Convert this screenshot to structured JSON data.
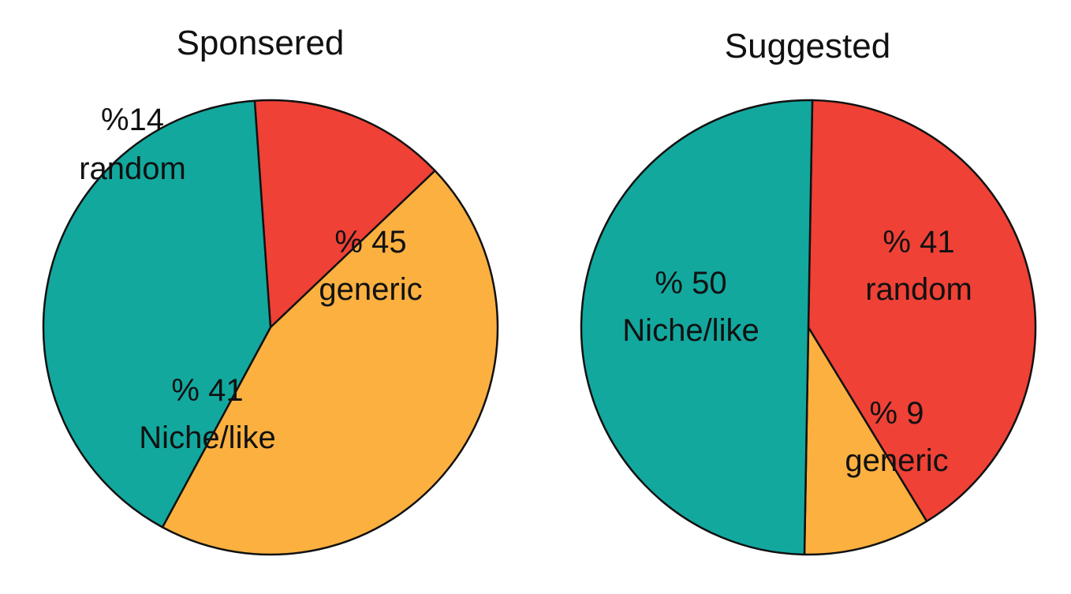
{
  "colors": {
    "random": "#ef4136",
    "generic": "#fbb040",
    "niche": "#13a89e",
    "stroke": "#111111"
  },
  "chart_data": [
    {
      "type": "pie",
      "title": "Sponsered",
      "slices": [
        {
          "name": "random",
          "value": 14,
          "label_pct": "%14",
          "label_name": "random",
          "color_key": "random"
        },
        {
          "name": "generic",
          "value": 45,
          "label_pct": "% 45",
          "label_name": "generic",
          "color_key": "generic"
        },
        {
          "name": "Niche/like",
          "value": 41,
          "label_pct": "% 41",
          "label_name": "Niche/like",
          "color_key": "niche"
        }
      ]
    },
    {
      "type": "pie",
      "title": "Suggested",
      "slices": [
        {
          "name": "random",
          "value": 41,
          "label_pct": "% 41",
          "label_name": "random",
          "color_key": "random"
        },
        {
          "name": "generic",
          "value": 9,
          "label_pct": "% 9",
          "label_name": "generic",
          "color_key": "generic"
        },
        {
          "name": "Niche/like",
          "value": 50,
          "label_pct": "% 50",
          "label_name": "Niche/like",
          "color_key": "niche"
        }
      ]
    }
  ]
}
